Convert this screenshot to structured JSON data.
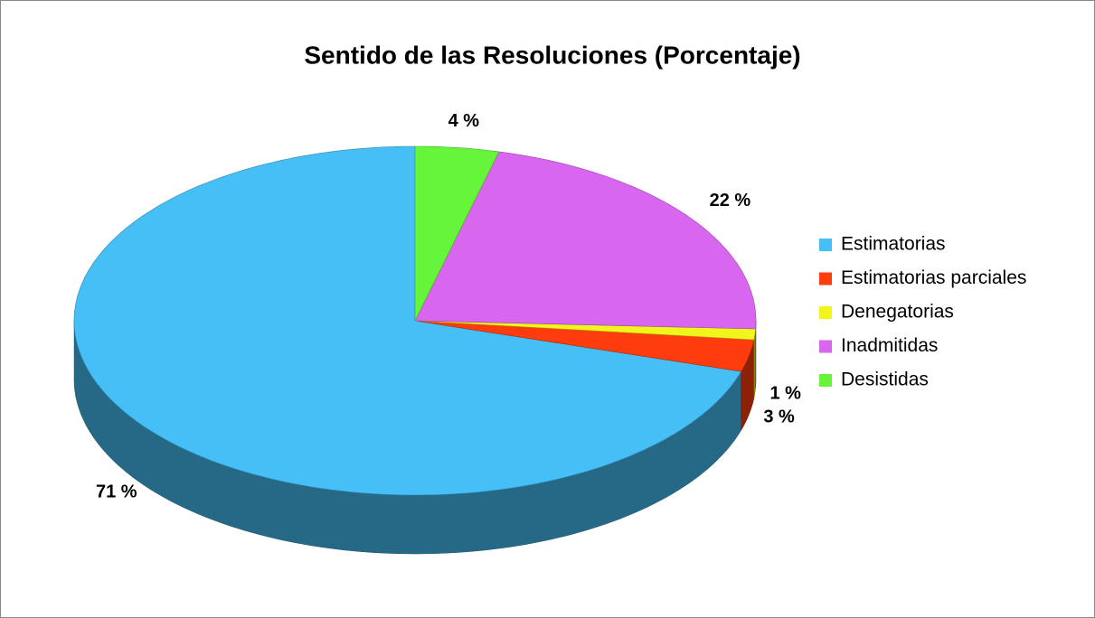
{
  "chart_data": {
    "type": "pie3d",
    "title": "Sentido de las Resoluciones (Porcentaje)",
    "categories": [
      "Estimatorias",
      "Estimatorias parciales",
      "Denegatorias",
      "Inadmitidas",
      "Desistidas"
    ],
    "values": [
      71,
      3,
      1,
      22,
      4
    ],
    "value_labels": [
      "71 %",
      "3 %",
      "1 %",
      "22 %",
      "4 %"
    ],
    "colors": [
      "#45bff5",
      "#ff3c0d",
      "#f2f51c",
      "#d966ef",
      "#66f53a"
    ],
    "legend": "right"
  }
}
